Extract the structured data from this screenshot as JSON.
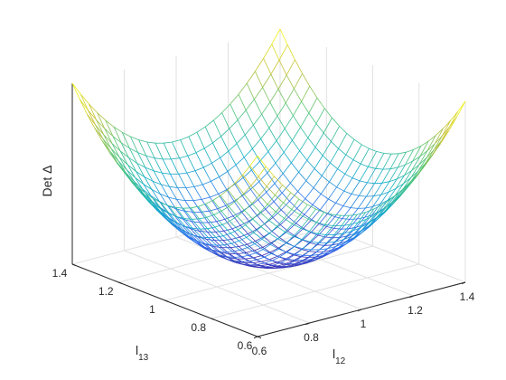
{
  "chart_data": {
    "type": "surface",
    "title": "",
    "xlabel": {
      "base": "l",
      "sub": "12"
    },
    "ylabel": {
      "base": "l",
      "sub": "13"
    },
    "zlabel": "Det Δ",
    "x_range": [
      0.6,
      1.4
    ],
    "y_range": [
      0.6,
      1.4
    ],
    "x_ticks": [
      "0.6",
      "0.8",
      "1",
      "1.2",
      "1.4"
    ],
    "y_ticks": [
      "0.6",
      "0.8",
      "1",
      "1.2",
      "1.4"
    ],
    "z_ticks": [],
    "grid": true,
    "mesh_lines_per_axis": 26,
    "colormap": [
      "#3e26a8",
      "#2d6fee",
      "#13b0c6",
      "#4dc57c",
      "#c4c034",
      "#f9fb15"
    ],
    "surface_shape": "paraboloid bowl, minimum at (1, 1), highest at the four corners"
  }
}
